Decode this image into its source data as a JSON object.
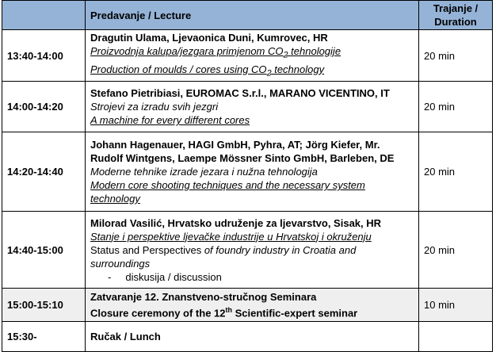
{
  "header": {
    "time": "",
    "lecture": "Predavanje / Lecture",
    "duration": "Trajanje / Duration"
  },
  "rows": [
    {
      "time": "13:40-14:00",
      "duration": "20 min",
      "speaker": "Dragutin Ulama, Ljevaonica Duni, Kumrovec, HR",
      "l1a": "Proizvodnja kalupa/jezgara primjenom CO",
      "l1sub": "2",
      "l1b": " tehnologije",
      "l2a": "Production of moulds / cores using CO",
      "l2sub": "2",
      "l2b": " technology"
    },
    {
      "time": "14:00-14:20",
      "duration": "20 min",
      "speaker": "Stefano Pietribiasi, EUROMAC S.r.l., MARANO VICENTINO, IT",
      "l1": "Strojevi za izradu svih jezgri",
      "l2": "A machine for every different cores"
    },
    {
      "time": "14:20-14:40",
      "duration": "20 min",
      "speaker": "Johann Hagenauer, HAGI GmbH, Pyhra, AT; Jörg Kiefer, Mr. Rudolf Wintgens, Laempe Mössner Sinto GmbH, Barleben, DE",
      "l1": "Moderne tehnike izrade jezara i nužna tehnologija",
      "l2": "Modern core shooting techniques and the necessary system technology"
    },
    {
      "time": "14:40-15:00",
      "duration": "20 min",
      "speaker": "Milorad Vasilić, Hrvatsko udruženje za ljevarstvo, Sisak, HR",
      "l1": "Stanje i perspektive ljevačke industrije u Hrvatskoj i okruženju",
      "l2a": "Status and Perspectives ",
      "l2b": "of foundry industry in Croatia and surroundings",
      "bullet": "-",
      "discussion": "diskusija / discussion"
    },
    {
      "time": "15:00-15:10",
      "duration": "10 min",
      "l1": "Zatvaranje 12. Znanstveno-stručnog Seminara",
      "l2a": "Closure ceremony of the 12",
      "l2sup": "th",
      "l2b": " Scientific-expert seminar"
    },
    {
      "time": "15:30-",
      "duration": "",
      "l1": "Ručak / Lunch"
    }
  ],
  "colors": {
    "header_bg": "#95b3d7",
    "highlight_row": "#efefef"
  }
}
